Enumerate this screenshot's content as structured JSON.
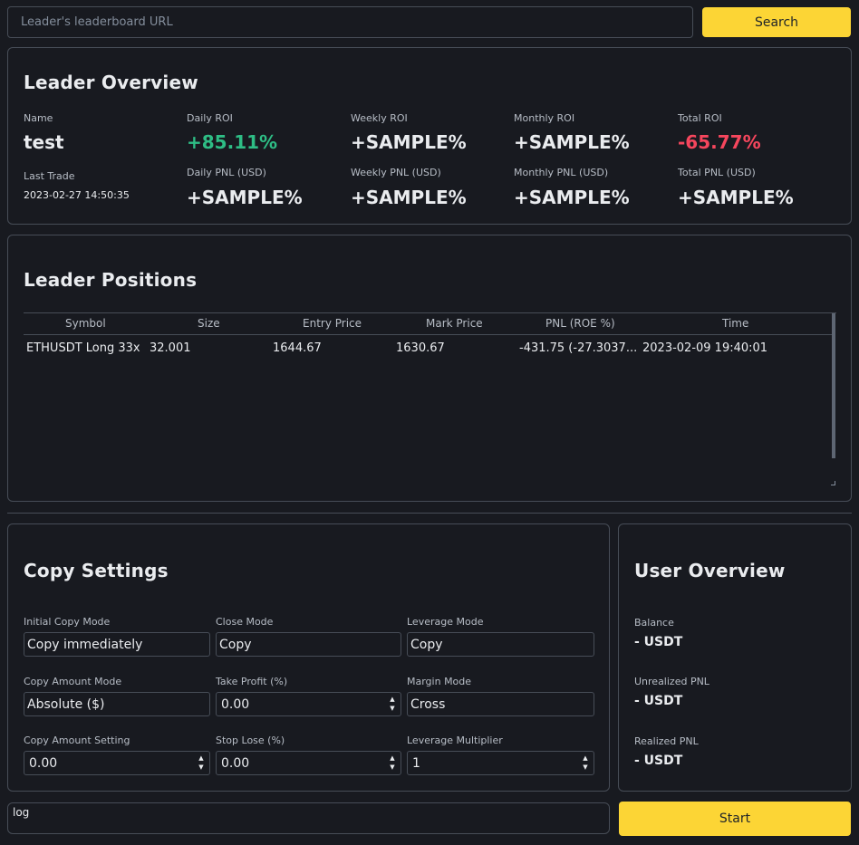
{
  "search": {
    "placeholder": "Leader's leaderboard URL",
    "button_label": "Search"
  },
  "leader_overview": {
    "title": "Leader Overview",
    "name_label": "Name",
    "name_value": "test",
    "last_trade_label": "Last Trade",
    "last_trade_value": "2023-02-27 14:50:35",
    "stats": [
      {
        "label": "Daily ROI",
        "value": "+85.11%",
        "tone": "positive"
      },
      {
        "label": "Weekly ROI",
        "value": "+SAMPLE%",
        "tone": "neutral"
      },
      {
        "label": "Monthly ROI",
        "value": "+SAMPLE%",
        "tone": "neutral"
      },
      {
        "label": "Total ROI",
        "value": "-65.77%",
        "tone": "negative"
      },
      {
        "label": "Daily PNL (USD)",
        "value": "+SAMPLE%",
        "tone": "neutral"
      },
      {
        "label": "Weekly PNL (USD)",
        "value": "+SAMPLE%",
        "tone": "neutral"
      },
      {
        "label": "Monthly PNL (USD)",
        "value": "+SAMPLE%",
        "tone": "neutral"
      },
      {
        "label": "Total PNL (USD)",
        "value": "+SAMPLE%",
        "tone": "neutral"
      }
    ]
  },
  "leader_positions": {
    "title": "Leader Positions",
    "columns": [
      "Symbol",
      "Size",
      "Entry Price",
      "Mark Price",
      "PNL (ROE %)",
      "Time"
    ],
    "rows": [
      {
        "symbol": "ETHUSDT Long 33x",
        "size": "32.001",
        "entry_price": "1644.67",
        "mark_price": "1630.67",
        "pnl": "-431.75 (-27.3037...",
        "time": "2023-02-09 19:40:01"
      }
    ]
  },
  "copy_settings": {
    "title": "Copy Settings",
    "fields": [
      {
        "label": "Initial Copy Mode",
        "value": "Copy immediately",
        "type": "select"
      },
      {
        "label": "Close Mode",
        "value": "Copy",
        "type": "select"
      },
      {
        "label": "Leverage Mode",
        "value": "Copy",
        "type": "select"
      },
      {
        "label": "Copy Amount Mode",
        "value": "Absolute ($)",
        "type": "select"
      },
      {
        "label": "Take Profit (%)",
        "value": "0.00",
        "type": "spin"
      },
      {
        "label": "Margin Mode",
        "value": "Cross",
        "type": "select"
      },
      {
        "label": "Copy Amount Setting",
        "value": "0.00",
        "type": "spin"
      },
      {
        "label": "Stop Lose (%)",
        "value": "0.00",
        "type": "spin"
      },
      {
        "label": "Leverage Multiplier",
        "value": "1",
        "type": "spin"
      }
    ]
  },
  "user_overview": {
    "title": "User Overview",
    "items": [
      {
        "label": "Balance",
        "value": "- USDT"
      },
      {
        "label": "Unrealized PNL",
        "value": "- USDT"
      },
      {
        "label": "Realized PNL",
        "value": "- USDT"
      }
    ]
  },
  "log": {
    "text": "log"
  },
  "start_button": {
    "label": "Start"
  },
  "colors": {
    "background": "#181a20",
    "border": "#474d57",
    "accent": "#fcd535",
    "positive": "#2ebd85",
    "negative": "#f6465d"
  }
}
